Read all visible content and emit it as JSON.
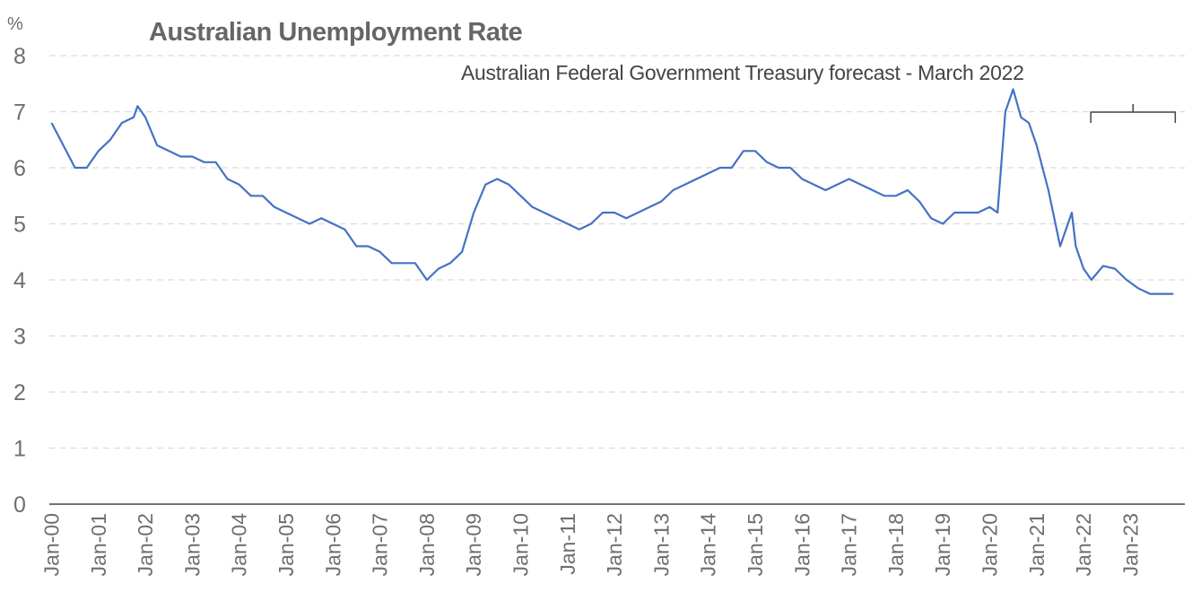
{
  "chart_data": {
    "type": "line",
    "title": "Australian Unemployment Rate",
    "yunit": "%",
    "annotation": "Australian Federal Government Treasury forecast - March 2022",
    "ylim": [
      0,
      8
    ],
    "yticks": [
      0,
      1,
      2,
      3,
      4,
      5,
      6,
      7,
      8
    ],
    "xticks": [
      "Jan-00",
      "Jan-01",
      "Jan-02",
      "Jan-03",
      "Jan-04",
      "Jan-05",
      "Jan-06",
      "Jan-07",
      "Jan-08",
      "Jan-09",
      "Jan-10",
      "Jan-11",
      "Jan-12",
      "Jan-13",
      "Jan-14",
      "Jan-15",
      "Jan-16",
      "Jan-17",
      "Jan-18",
      "Jan-19",
      "Jan-20",
      "Jan-21",
      "Jan-22",
      "Jan-23"
    ],
    "grid": "horizontal dashed",
    "forecast_range": [
      "2022-04",
      "2023-12"
    ],
    "series": [
      {
        "color": "#4472c4",
        "x": [
          "2000-01",
          "2000-04",
          "2000-07",
          "2000-10",
          "2001-01",
          "2001-04",
          "2001-07",
          "2001-10",
          "2001-11",
          "2002-01",
          "2002-04",
          "2002-07",
          "2002-10",
          "2003-01",
          "2003-04",
          "2003-07",
          "2003-10",
          "2004-01",
          "2004-04",
          "2004-07",
          "2004-10",
          "2005-01",
          "2005-04",
          "2005-07",
          "2005-10",
          "2006-01",
          "2006-04",
          "2006-07",
          "2006-10",
          "2007-01",
          "2007-04",
          "2007-07",
          "2007-10",
          "2008-01",
          "2008-04",
          "2008-07",
          "2008-10",
          "2009-01",
          "2009-04",
          "2009-07",
          "2009-10",
          "2010-01",
          "2010-04",
          "2010-07",
          "2010-10",
          "2011-01",
          "2011-04",
          "2011-07",
          "2011-10",
          "2012-01",
          "2012-04",
          "2012-07",
          "2012-10",
          "2013-01",
          "2013-04",
          "2013-07",
          "2013-10",
          "2014-01",
          "2014-04",
          "2014-07",
          "2014-10",
          "2015-01",
          "2015-04",
          "2015-07",
          "2015-10",
          "2016-01",
          "2016-04",
          "2016-07",
          "2016-10",
          "2017-01",
          "2017-04",
          "2017-07",
          "2017-10",
          "2018-01",
          "2018-04",
          "2018-07",
          "2018-10",
          "2019-01",
          "2019-04",
          "2019-07",
          "2019-10",
          "2020-01",
          "2020-03",
          "2020-05",
          "2020-07",
          "2020-09",
          "2020-11",
          "2021-01",
          "2021-04",
          "2021-07",
          "2021-10",
          "2021-11",
          "2022-01",
          "2022-03",
          "2022-06",
          "2022-09",
          "2022-12",
          "2023-03",
          "2023-06",
          "2023-09",
          "2023-12"
        ],
        "y": [
          6.8,
          6.4,
          6.0,
          6.0,
          6.3,
          6.5,
          6.8,
          6.9,
          7.1,
          6.9,
          6.4,
          6.3,
          6.2,
          6.2,
          6.1,
          6.1,
          5.8,
          5.7,
          5.5,
          5.5,
          5.3,
          5.2,
          5.1,
          5.0,
          5.1,
          5.0,
          4.9,
          4.6,
          4.6,
          4.5,
          4.3,
          4.3,
          4.3,
          4.0,
          4.2,
          4.3,
          4.5,
          5.2,
          5.7,
          5.8,
          5.7,
          5.5,
          5.3,
          5.2,
          5.1,
          5.0,
          4.9,
          5.0,
          5.2,
          5.2,
          5.1,
          5.2,
          5.3,
          5.4,
          5.6,
          5.7,
          5.8,
          5.9,
          6.0,
          6.0,
          6.3,
          6.3,
          6.1,
          6.0,
          6.0,
          5.8,
          5.7,
          5.6,
          5.7,
          5.8,
          5.7,
          5.6,
          5.5,
          5.5,
          5.6,
          5.4,
          5.1,
          5.0,
          5.2,
          5.2,
          5.2,
          5.3,
          5.2,
          7.0,
          7.4,
          6.9,
          6.8,
          6.4,
          5.6,
          4.6,
          5.2,
          4.6,
          4.2,
          4.0,
          4.25,
          4.2,
          4.0,
          3.85,
          3.75,
          3.75,
          3.75
        ]
      }
    ]
  }
}
